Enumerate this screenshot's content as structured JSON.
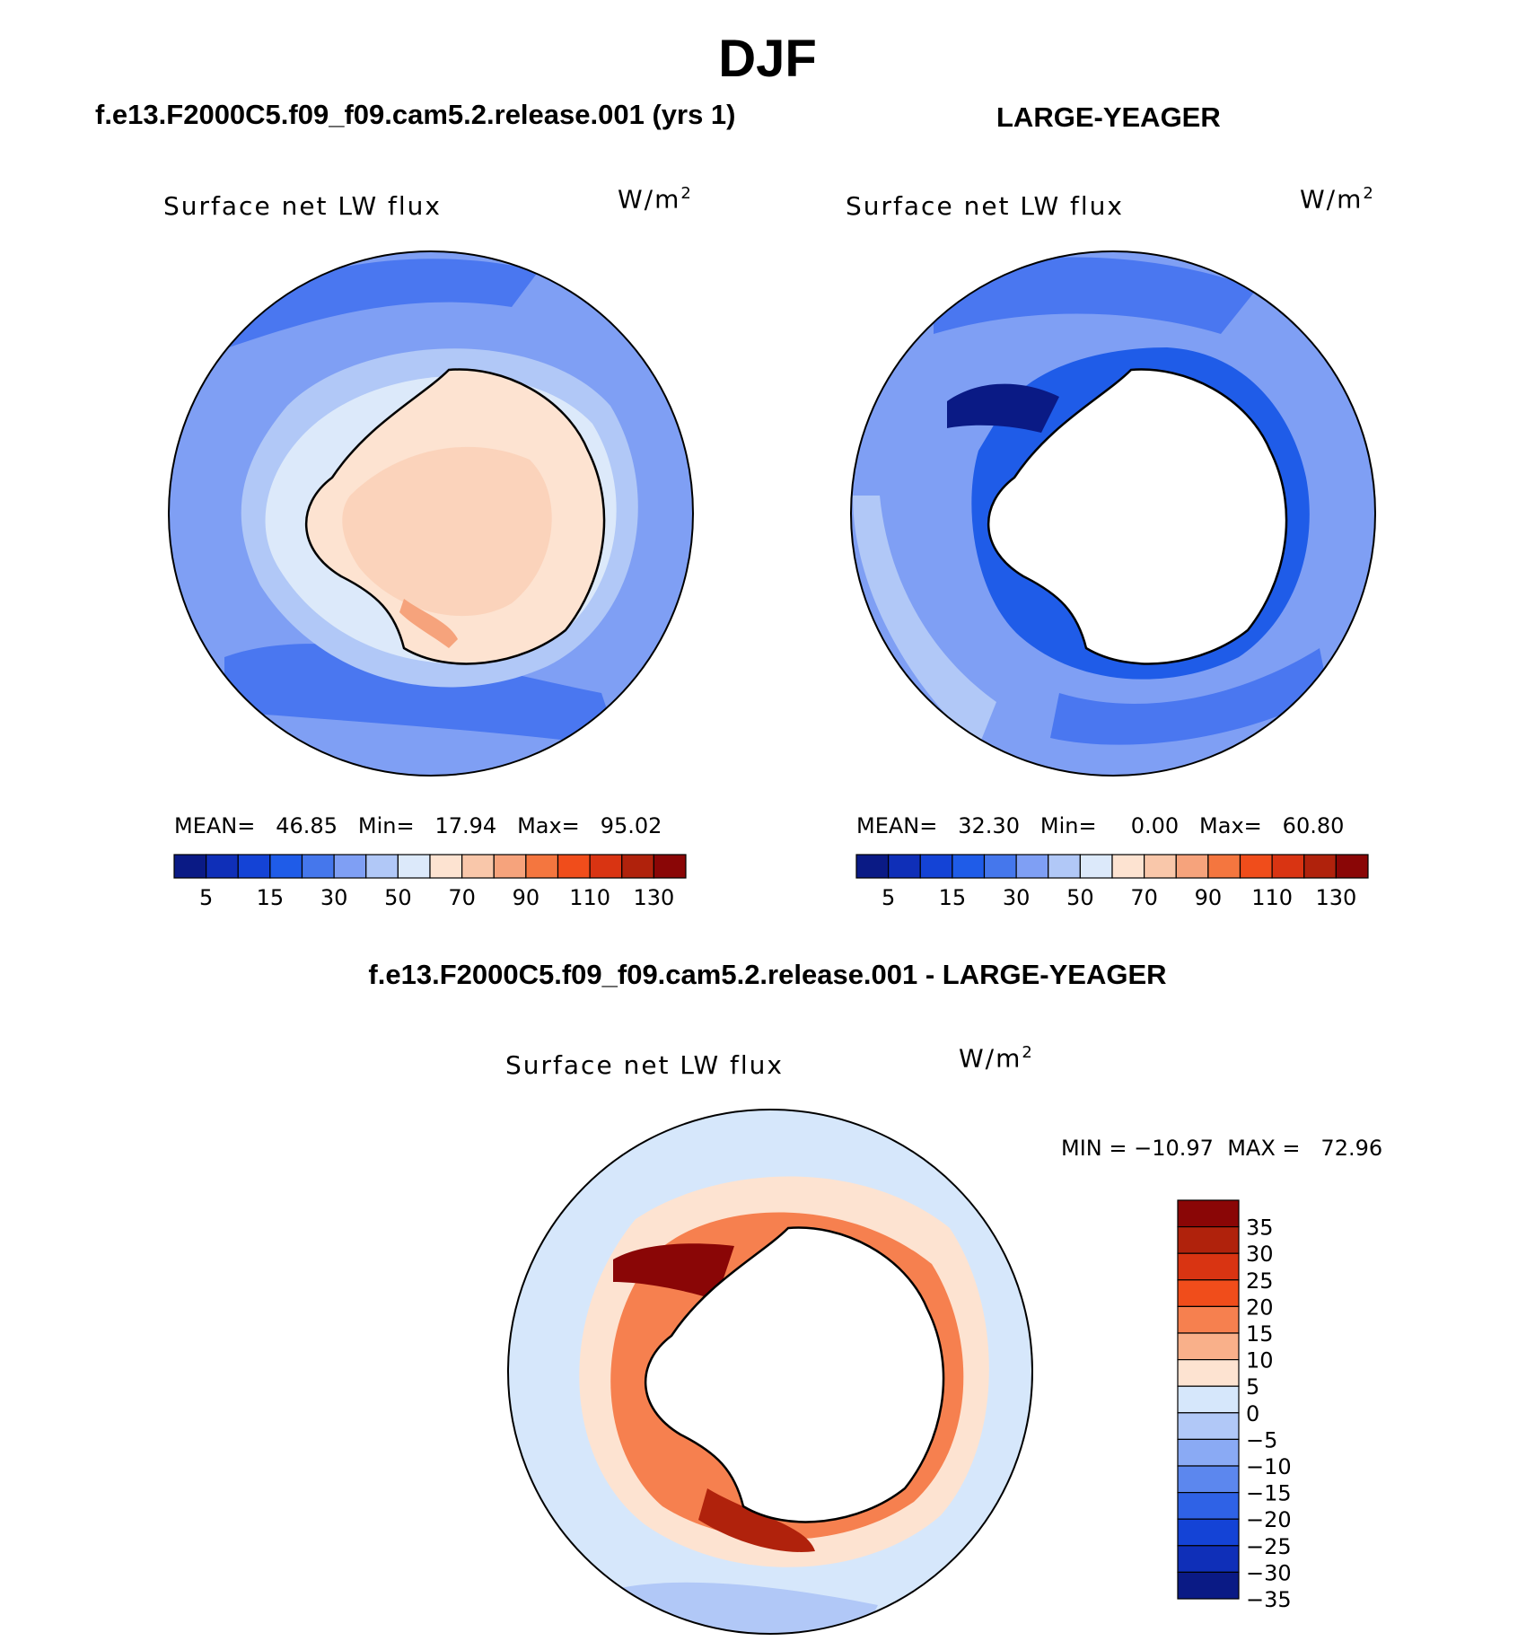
{
  "header": {
    "title": "DJF",
    "left_case": "f.e13.F2000C5.f09_f09.cam5.2.release.001 (yrs 1)",
    "right_case": "LARGE-YEAGER",
    "diff_case": "f.e13.F2000C5.f09_f09.cam5.2.release.001 - LARGE-YEAGER"
  },
  "colors": {
    "land_fill": "#ffffff",
    "coastline": "#000000",
    "ocean_low": "#86a7ff",
    "ocean_mid": "#4a77f0",
    "ice_warm": "#fde2cf",
    "diff_pos": "#a40000",
    "diff_bg": "#d6e7fb"
  },
  "chart_data": [
    {
      "id": "model",
      "type": "heatmap",
      "projection": "south-polar-stereographic",
      "title": "Surface net LW flux",
      "units": "W/m",
      "units_exp": "2",
      "stats": {
        "mean_label": "MEAN=",
        "mean": "46.85",
        "min_label": "Min=",
        "min": "17.94",
        "max_label": "Max=",
        "max": "95.02"
      },
      "levels": [
        0,
        5,
        10,
        15,
        20,
        30,
        40,
        50,
        60,
        70,
        80,
        90,
        100,
        110,
        120,
        130,
        140
      ],
      "tick_labels": [
        "5",
        "15",
        "30",
        "50",
        "70",
        "90",
        "110",
        "130"
      ],
      "colors": [
        "#0a1a85",
        "#0f2fb8",
        "#1443d6",
        "#1f5ce8",
        "#4577ec",
        "#7f9ff4",
        "#b1c8f7",
        "#dce9fa",
        "#fde3d1",
        "#f9c7aa",
        "#f6a37c",
        "#f4763f",
        "#f04d1b",
        "#d93412",
        "#b0220c",
        "#8a0606"
      ]
    },
    {
      "id": "obs",
      "type": "heatmap",
      "projection": "south-polar-stereographic",
      "title": "Surface net LW flux",
      "units": "W/m",
      "units_exp": "2",
      "stats": {
        "mean_label": "MEAN=",
        "mean": "32.30",
        "min_label": "Min=",
        "min": "0.00",
        "max_label": "Max=",
        "max": "60.80"
      },
      "levels": [
        0,
        5,
        10,
        15,
        20,
        30,
        40,
        50,
        60,
        70,
        80,
        90,
        100,
        110,
        120,
        130,
        140
      ],
      "tick_labels": [
        "5",
        "15",
        "30",
        "50",
        "70",
        "90",
        "110",
        "130"
      ],
      "colors": [
        "#0a1a85",
        "#0f2fb8",
        "#1443d6",
        "#1f5ce8",
        "#4577ec",
        "#7f9ff4",
        "#b1c8f7",
        "#dce9fa",
        "#fde3d1",
        "#f9c7aa",
        "#f6a37c",
        "#f4763f",
        "#f04d1b",
        "#d93412",
        "#b0220c",
        "#8a0606"
      ]
    },
    {
      "id": "diff",
      "type": "heatmap",
      "projection": "south-polar-stereographic",
      "title": "Surface net LW flux",
      "units": "W/m",
      "units_exp": "2",
      "stats": {
        "min_label": "MIN =",
        "min": "−10.97",
        "max_label": "MAX =",
        "max": "72.96"
      },
      "tick_labels": [
        "35",
        "30",
        "25",
        "20",
        "15",
        "10",
        "5",
        "0",
        "−5",
        "−10",
        "−15",
        "−20",
        "−25",
        "−30",
        "−35"
      ],
      "colors": [
        "#8a0606",
        "#b0220c",
        "#d93412",
        "#f04d1b",
        "#f6804f",
        "#f9b08a",
        "#fde3d1",
        "#d6e7fb",
        "#b1c8f7",
        "#8aaaf4",
        "#5c87ee",
        "#2f62e6",
        "#1443d6",
        "#0f2fb8",
        "#0a1a85"
      ]
    }
  ]
}
